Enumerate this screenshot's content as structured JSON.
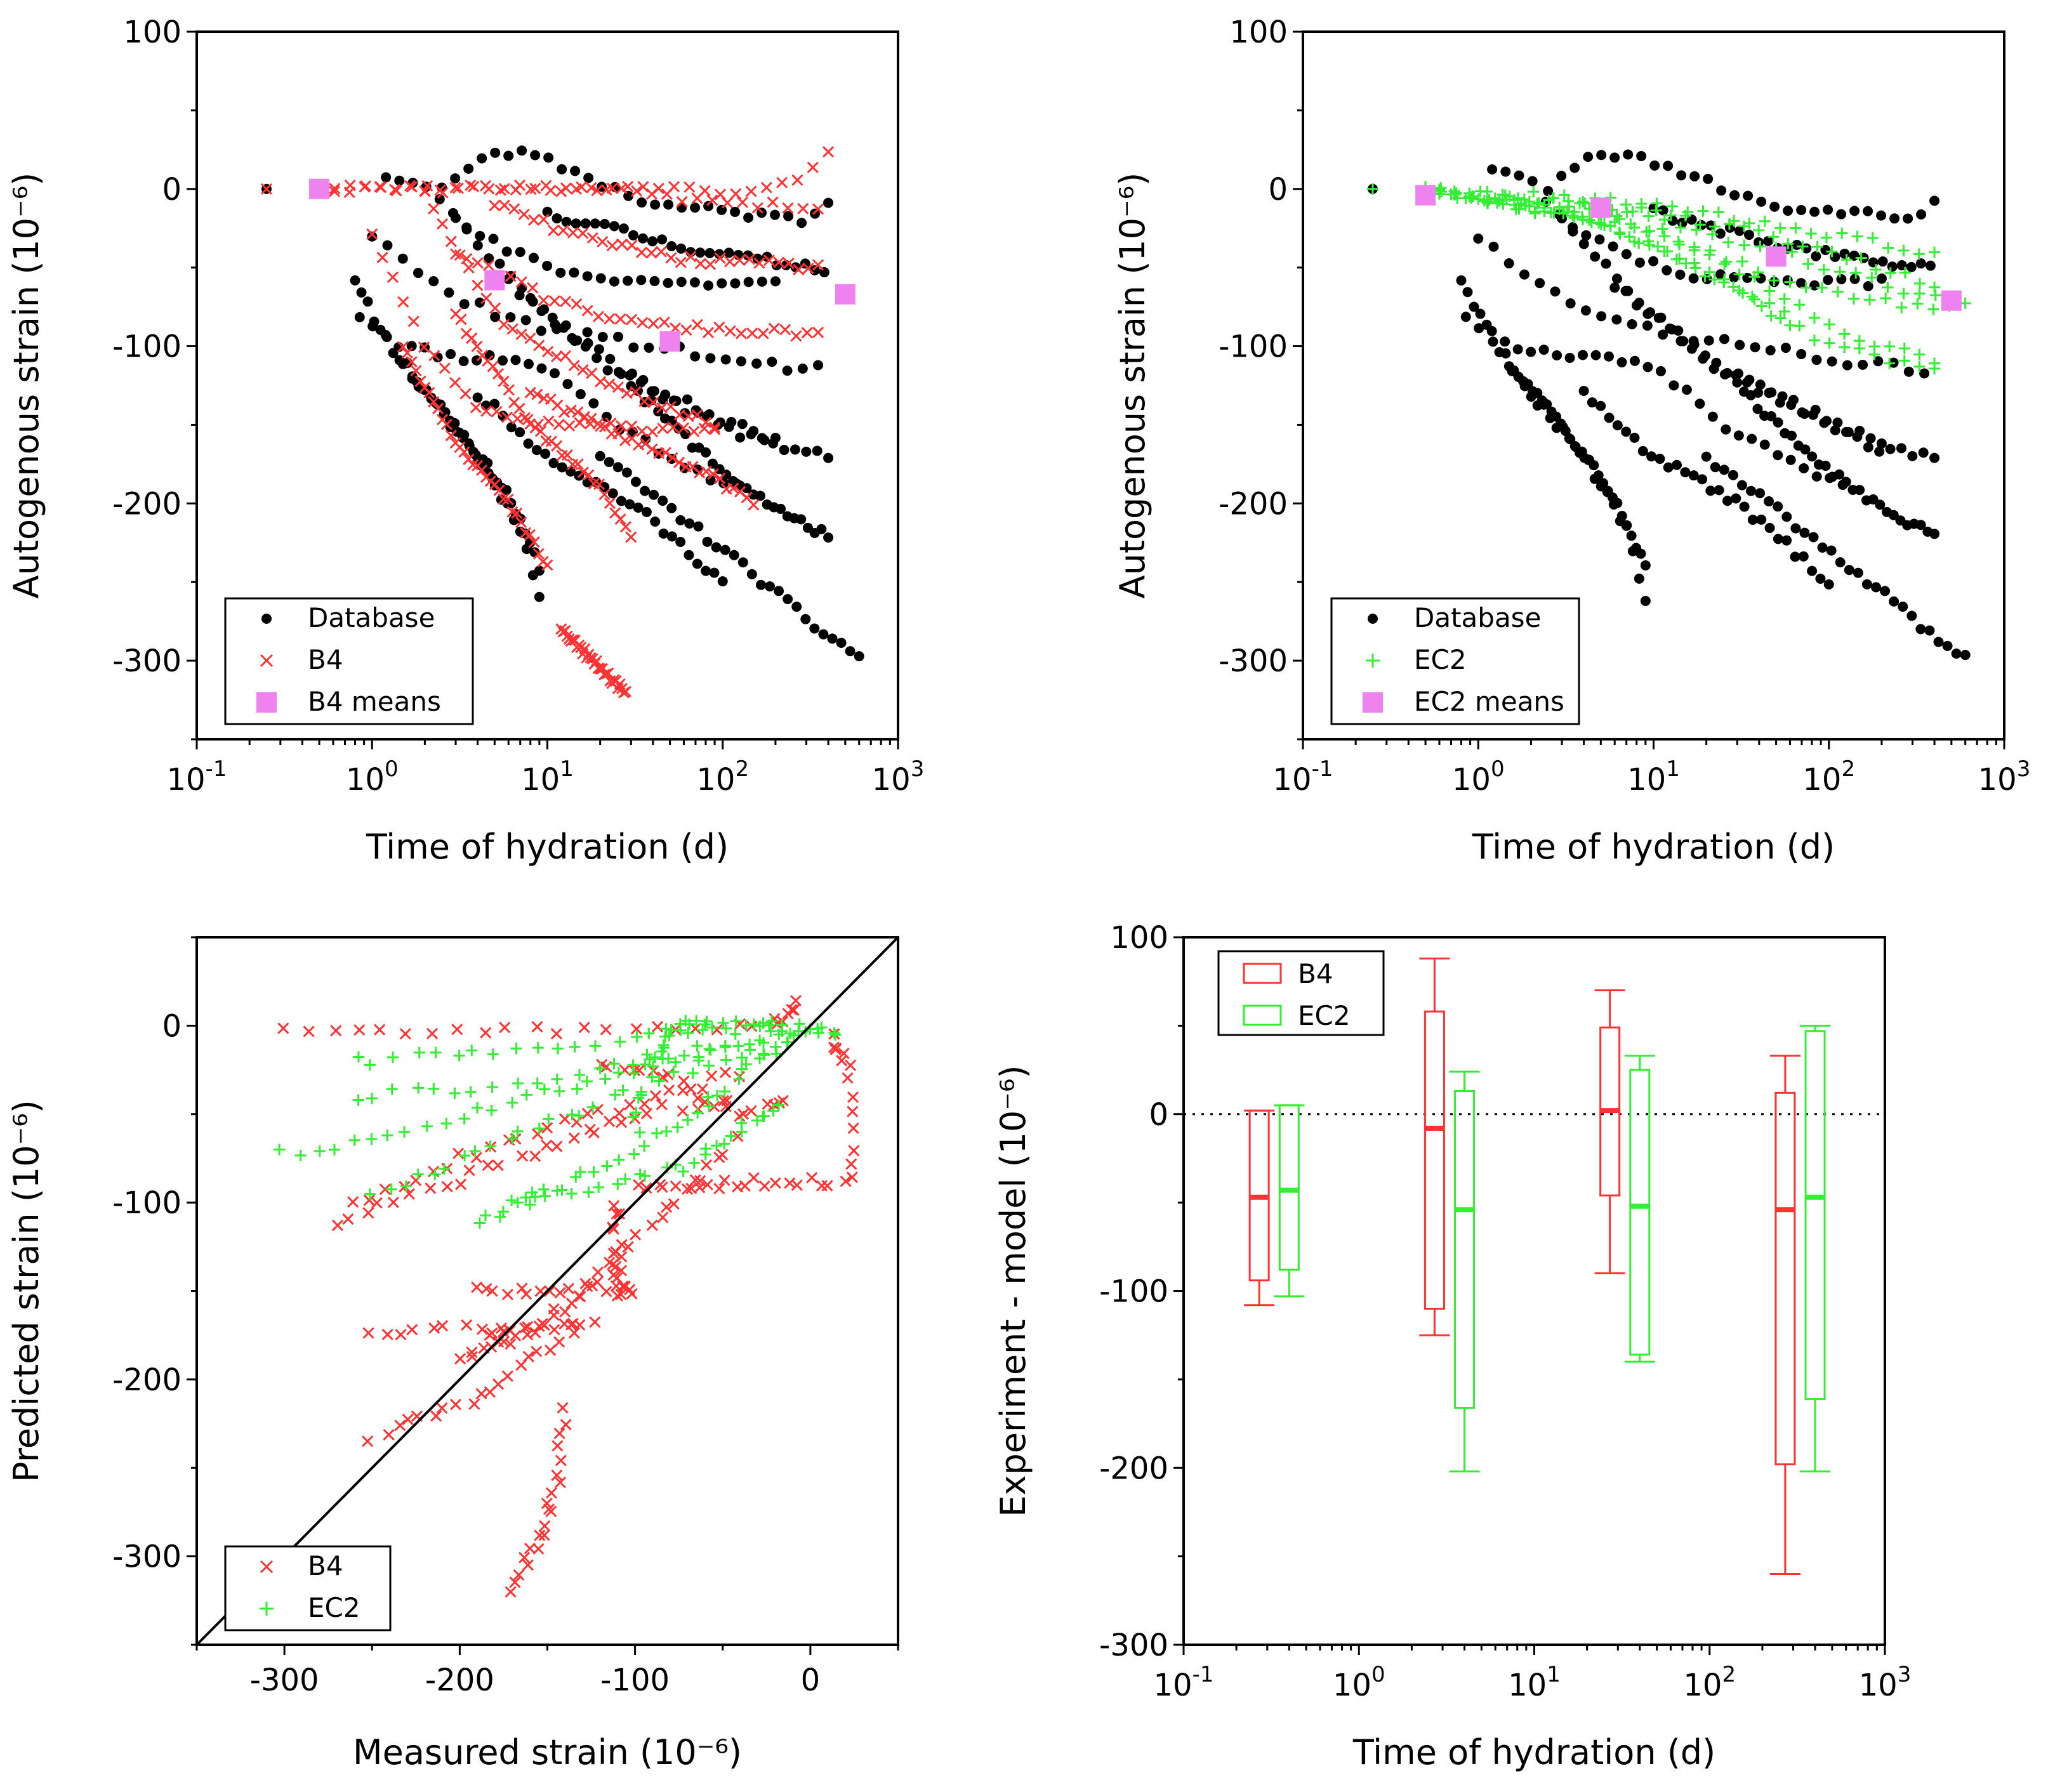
{
  "colors": {
    "db": "#000000",
    "b4": "#ff3333",
    "ec2": "#33ee33",
    "means": "#ee82ee"
  },
  "chart_data": [
    {
      "id": "a",
      "type": "scatter",
      "xlabel": "Time of hydration (d)",
      "ylabel": "Autogenous strain (10⁻⁶)",
      "xscale": "log",
      "xlim": [
        0.1,
        1000
      ],
      "ylim": [
        -350,
        100
      ],
      "yticks": [
        "100",
        "0",
        "-100",
        "-200",
        "-300"
      ],
      "xticks": [
        {
          "base": "10",
          "exp": "-1"
        },
        {
          "base": "10",
          "exp": "0"
        },
        {
          "base": "10",
          "exp": "1"
        },
        {
          "base": "10",
          "exp": "2"
        },
        {
          "base": "10",
          "exp": "3"
        }
      ],
      "legend": [
        "Database",
        "B4",
        "B4 means"
      ],
      "legend_position": "bottom-left",
      "means_x": [
        0.5,
        5,
        50,
        500
      ],
      "means_y": [
        0,
        -58,
        -97,
        -67
      ]
    },
    {
      "id": "b",
      "type": "scatter",
      "xlabel": "Time of hydration (d)",
      "ylabel": "Autogenous strain (10⁻⁶)",
      "xscale": "log",
      "xlim": [
        0.1,
        1000
      ],
      "ylim": [
        -350,
        100
      ],
      "yticks": [
        "100",
        "0",
        "-100",
        "-200",
        "-300"
      ],
      "xticks": [
        {
          "base": "10",
          "exp": "-1"
        },
        {
          "base": "10",
          "exp": "0"
        },
        {
          "base": "10",
          "exp": "1"
        },
        {
          "base": "10",
          "exp": "2"
        },
        {
          "base": "10",
          "exp": "3"
        }
      ],
      "legend": [
        "Database",
        "EC2",
        "EC2 means"
      ],
      "legend_position": "bottom-left",
      "means_x": [
        0.5,
        5,
        50,
        500
      ],
      "means_y": [
        -4,
        -12,
        -43,
        -71
      ]
    },
    {
      "id": "c",
      "type": "scatter",
      "xlabel": "Measured strain (10⁻⁶)",
      "ylabel": "Predicted strain (10⁻⁶)",
      "xlim": [
        -350,
        50
      ],
      "ylim": [
        -350,
        50
      ],
      "xticks": [
        "-300",
        "-200",
        "-100",
        "0"
      ],
      "yticks": [
        "0",
        "-100",
        "-200",
        "-300"
      ],
      "legend": [
        "B4",
        "EC2"
      ],
      "legend_position": "bottom-left",
      "reference_line": "y = x"
    },
    {
      "id": "d",
      "type": "box",
      "xlabel": "Time of hydration (d)",
      "ylabel": "Experiment - model (10⁻⁶)",
      "xscale": "log",
      "xlim": [
        0.1,
        1000
      ],
      "ylim": [
        -300,
        100
      ],
      "yticks": [
        "100",
        "0",
        "-100",
        "-200",
        "-300"
      ],
      "xticks": [
        {
          "base": "10",
          "exp": "-1"
        },
        {
          "base": "10",
          "exp": "0"
        },
        {
          "base": "10",
          "exp": "1"
        },
        {
          "base": "10",
          "exp": "2"
        },
        {
          "base": "10",
          "exp": "3"
        }
      ],
      "legend": [
        "B4",
        "EC2"
      ],
      "legend_position": "top-left",
      "zero_line": 0,
      "boxes": [
        {
          "series": "B4",
          "x": 0.27,
          "whisker_low": -108,
          "q1": -94,
          "median": -47,
          "q3": 2,
          "whisker_high": 2
        },
        {
          "series": "EC2",
          "x": 0.4,
          "whisker_low": -103,
          "q1": -88,
          "median": -43,
          "q3": 5,
          "whisker_high": 5
        },
        {
          "series": "B4",
          "x": 2.7,
          "whisker_low": -125,
          "q1": -110,
          "median": -8,
          "q3": 58,
          "whisker_high": 88
        },
        {
          "series": "EC2",
          "x": 4.0,
          "whisker_low": -202,
          "q1": -166,
          "median": -54,
          "q3": 13,
          "whisker_high": 24
        },
        {
          "series": "B4",
          "x": 27,
          "whisker_low": -90,
          "q1": -46,
          "median": 2,
          "q3": 49,
          "whisker_high": 70
        },
        {
          "series": "EC2",
          "x": 40,
          "whisker_low": -140,
          "q1": -136,
          "median": -52,
          "q3": 25,
          "whisker_high": 33
        },
        {
          "series": "B4",
          "x": 270,
          "whisker_low": -260,
          "q1": -198,
          "median": -54,
          "q3": 12,
          "whisker_high": 33
        },
        {
          "series": "EC2",
          "x": 400,
          "whisker_low": -202,
          "q1": -161,
          "median": -47,
          "q3": 47,
          "whisker_high": 50
        }
      ]
    }
  ]
}
